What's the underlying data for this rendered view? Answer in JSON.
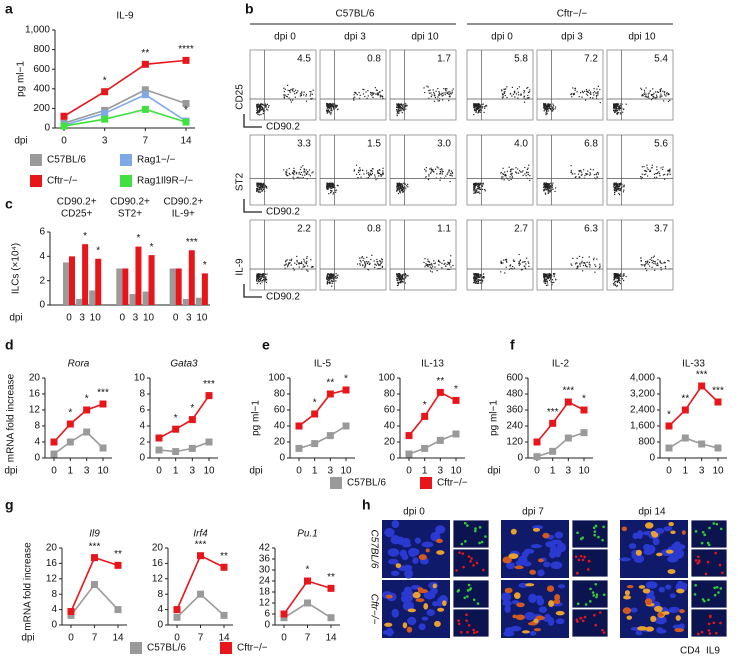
{
  "chart_data": [
    {
      "type": "line",
      "panel": "a",
      "title": "IL-9",
      "ylabel": "pg ml−1",
      "xlabel": "dpi",
      "categories": [
        "0",
        "3",
        "7",
        "14"
      ],
      "ylim": [
        0,
        1000
      ],
      "yticks": [
        0,
        200,
        400,
        600,
        800,
        {
          "value": 1000,
          "label": "1,000"
        }
      ],
      "series": [
        {
          "color": "#9a9a9a",
          "values": [
            50,
            180,
            390,
            250
          ],
          "stars": [
            null,
            null,
            null,
            null
          ]
        },
        {
          "color": "#e8161b",
          "values": [
            120,
            370,
            650,
            690
          ],
          "stars": [
            null,
            "*",
            "**",
            "****"
          ]
        },
        {
          "color": "#7fa9e6",
          "values": [
            30,
            150,
            340,
            70
          ],
          "stars": [
            null,
            null,
            null,
            "*"
          ]
        },
        {
          "color": "#3fe03f",
          "values": [
            20,
            90,
            190,
            60
          ],
          "stars": [
            null,
            null,
            null,
            null
          ]
        }
      ]
    },
    {
      "type": "legend",
      "entries": [
        {
          "name": "C57BL/6",
          "color": "#9a9a9a"
        },
        {
          "name": "Rag1−/−",
          "color": "#7fa9e6"
        },
        {
          "name": "Cftr−/−",
          "color": "#e8161b"
        },
        {
          "name": "Rag1Il9R−/−",
          "color": "#3fe03f"
        }
      ]
    },
    {
      "type": "flow",
      "panel": "b",
      "groups": [
        "C57BL/6",
        "Cftr−/−"
      ],
      "columns": [
        "dpi 0",
        "dpi 3",
        "dpi 10",
        "dpi 0",
        "dpi 3",
        "dpi 10"
      ],
      "xmarker": "CD90.2",
      "rows": [
        {
          "marker": "CD25",
          "values": [
            4.5,
            0.8,
            1.7,
            5.8,
            7.2,
            5.4
          ],
          "value_labels": [
            "4.5",
            "0.8",
            "1.7",
            "5.8",
            "7.2",
            "5.4"
          ]
        },
        {
          "marker": "ST2",
          "values": [
            3.3,
            1.5,
            3,
            4,
            6.8,
            5.6
          ],
          "value_labels": [
            "3.3",
            "1.5",
            "3.0",
            "4.0",
            "6.8",
            "5.6"
          ]
        },
        {
          "marker": "IL-9",
          "values": [
            2.2,
            0.8,
            1.1,
            2.7,
            6.3,
            3.7
          ],
          "value_labels": [
            "2.2",
            "0.8",
            "1.1",
            "2.7",
            "6.3",
            "3.7"
          ]
        }
      ]
    },
    {
      "type": "bar",
      "panel": "c",
      "ylabel": "ILCs (×10⁴)",
      "xlabel": "dpi",
      "groups": [
        [
          "CD90.2+",
          "CD25+"
        ],
        [
          "CD90.2+",
          "ST2+"
        ],
        [
          "CD90.2+",
          "IL-9+"
        ]
      ],
      "categories": [
        "0",
        "3",
        "10",
        "0",
        "3",
        "10",
        "0",
        "3",
        "10"
      ],
      "ylim": [
        0,
        6
      ],
      "yticks": [
        0,
        2,
        4,
        6
      ],
      "series": [
        {
          "color": "#9a9a9a",
          "values": [
            3.5,
            0.5,
            1.2,
            3.0,
            0.9,
            1.1,
            3.0,
            0.5,
            0.6
          ],
          "stars": [
            null,
            null,
            null,
            null,
            null,
            null,
            null,
            null,
            null
          ]
        },
        {
          "color": "#e8161b",
          "values": [
            4.0,
            5.0,
            3.8,
            3.0,
            4.8,
            4.1,
            3.0,
            4.5,
            2.6
          ],
          "stars": [
            null,
            "*",
            "*",
            null,
            "*",
            "*",
            null,
            "***",
            "*"
          ]
        }
      ]
    },
    {
      "type": "line",
      "panel": "d",
      "title": "Rora",
      "italic": true,
      "ylabel": "mRNA fold increase",
      "xlabel": "dpi",
      "categories": [
        "0",
        "1",
        "3",
        "10"
      ],
      "ylim": [
        0,
        20
      ],
      "yticks": [
        0,
        4,
        8,
        12,
        16,
        20
      ],
      "series": [
        {
          "color": "#9a9a9a",
          "values": [
            1,
            4,
            6.5,
            2.5
          ],
          "stars": [
            null,
            null,
            null,
            null
          ]
        },
        {
          "color": "#e8161b",
          "values": [
            4,
            8.5,
            12,
            13.5
          ],
          "stars": [
            null,
            "*",
            "*",
            "***"
          ]
        }
      ]
    },
    {
      "type": "line",
      "title": "Gata3",
      "italic": true,
      "categories": [
        "0",
        "1",
        "3",
        "10"
      ],
      "ylim": [
        0,
        10
      ],
      "yticks": [
        0,
        2,
        4,
        6,
        8,
        10
      ],
      "series": [
        {
          "color": "#9a9a9a",
          "values": [
            1,
            0.8,
            1.2,
            2
          ],
          "stars": [
            null,
            null,
            null,
            null
          ]
        },
        {
          "color": "#e8161b",
          "values": [
            2.5,
            3.6,
            4.8,
            7.8
          ],
          "stars": [
            null,
            "*",
            "*",
            "***"
          ]
        }
      ]
    },
    {
      "type": "line",
      "panel": "e",
      "title": "IL-5",
      "ylabel": "pg ml−1",
      "xlabel": "dpi",
      "categories": [
        "0",
        "1",
        "3",
        "10"
      ],
      "ylim": [
        0,
        100
      ],
      "yticks": [
        0,
        20,
        40,
        60,
        80,
        100
      ],
      "series": [
        {
          "color": "#9a9a9a",
          "values": [
            12,
            18,
            28,
            40
          ],
          "stars": [
            null,
            null,
            null,
            null
          ]
        },
        {
          "color": "#e8161b",
          "values": [
            40,
            55,
            80,
            85
          ],
          "stars": [
            null,
            "*",
            "**",
            "*"
          ]
        }
      ]
    },
    {
      "type": "line",
      "title": "IL-13",
      "categories": [
        "0",
        "1",
        "3",
        "10"
      ],
      "ylim": [
        0,
        100
      ],
      "yticks": [
        0,
        20,
        40,
        60,
        80,
        100
      ],
      "series": [
        {
          "color": "#9a9a9a",
          "values": [
            5,
            12,
            22,
            30
          ],
          "stars": [
            null,
            null,
            null,
            null
          ]
        },
        {
          "color": "#e8161b",
          "values": [
            28,
            52,
            82,
            72
          ],
          "stars": [
            null,
            "*",
            "**",
            "*"
          ]
        }
      ]
    },
    {
      "type": "line",
      "panel": "f",
      "title": "IL-2",
      "ylabel": "pg ml−1",
      "xlabel": "dpi",
      "categories": [
        "0",
        "1",
        "3",
        "10"
      ],
      "ylim": [
        0,
        600
      ],
      "yticks": [
        0,
        120,
        240,
        360,
        480,
        600
      ],
      "series": [
        {
          "color": "#9a9a9a",
          "values": [
            10,
            50,
            150,
            190
          ],
          "stars": [
            null,
            null,
            null,
            null
          ]
        },
        {
          "color": "#e8161b",
          "values": [
            120,
            260,
            420,
            360
          ],
          "stars": [
            null,
            "***",
            "***",
            "*"
          ]
        }
      ]
    },
    {
      "type": "line",
      "title": "IL-33",
      "categories": [
        "0",
        "1",
        "3",
        "10"
      ],
      "ylim": [
        0,
        4000
      ],
      "yticks": [
        0,
        800,
        {
          "value": 1600,
          "label": "1,600"
        },
        {
          "value": 2400,
          "label": "2,400"
        },
        {
          "value": 3200,
          "label": "3,200"
        },
        {
          "value": 4000,
          "label": "4,000"
        }
      ],
      "series": [
        {
          "color": "#9a9a9a",
          "values": [
            500,
            1000,
            700,
            500
          ],
          "stars": [
            null,
            null,
            null,
            null
          ]
        },
        {
          "color": "#e8161b",
          "values": [
            1600,
            2400,
            3600,
            2800
          ],
          "stars": [
            "*",
            "**",
            "***",
            "***"
          ]
        }
      ]
    },
    {
      "type": "legend",
      "entries": [
        {
          "name": "C57BL/6",
          "color": "#9a9a9a"
        },
        {
          "name": "Cftr−/−",
          "color": "#e8161b"
        }
      ]
    },
    {
      "type": "line",
      "panel": "g",
      "title": "Il9",
      "italic": true,
      "ylabel": "mRNA fold increase",
      "xlabel": "dpi",
      "categories": [
        "0",
        "7",
        "14"
      ],
      "ylim": [
        0,
        20
      ],
      "yticks": [
        0,
        4,
        8,
        12,
        16,
        20
      ],
      "series": [
        {
          "color": "#9a9a9a",
          "values": [
            2.5,
            10.5,
            4
          ],
          "stars": [
            null,
            null,
            null
          ]
        },
        {
          "color": "#e8161b",
          "values": [
            3.5,
            17.5,
            15.5
          ],
          "stars": [
            null,
            "***",
            "**"
          ]
        }
      ]
    },
    {
      "type": "line",
      "title": "Irf4",
      "italic": true,
      "categories": [
        "0",
        "7",
        "14"
      ],
      "ylim": [
        0,
        20
      ],
      "yticks": [
        0,
        4,
        8,
        12,
        16,
        20
      ],
      "series": [
        {
          "color": "#9a9a9a",
          "values": [
            2,
            8,
            2.5
          ],
          "stars": [
            null,
            null,
            null
          ]
        },
        {
          "color": "#e8161b",
          "values": [
            4,
            18,
            15
          ],
          "stars": [
            null,
            "***",
            "**"
          ]
        }
      ]
    },
    {
      "type": "line",
      "title": "Pu.1",
      "italic": true,
      "categories": [
        "0",
        "7",
        "14"
      ],
      "ylim": [
        0,
        42
      ],
      "yticks": [
        0,
        6,
        12,
        18,
        24,
        30,
        36,
        42
      ],
      "series": [
        {
          "color": "#9a9a9a",
          "values": [
            4,
            12,
            4
          ],
          "stars": [
            null,
            null,
            null
          ]
        },
        {
          "color": "#e8161b",
          "values": [
            6,
            24,
            20
          ],
          "stars": [
            null,
            "*",
            "**"
          ]
        }
      ]
    },
    {
      "type": "legend",
      "entries": [
        {
          "name": "C57BL/6",
          "color": "#9a9a9a"
        },
        {
          "name": "Cftr−/−",
          "color": "#e8161b"
        }
      ]
    },
    {
      "type": "image",
      "panel": "h",
      "columns": [
        "dpi 0",
        "dpi 7",
        "dpi 14"
      ],
      "rows": [
        "C57BL/6",
        "Cftr−/−"
      ],
      "stains": [
        {
          "name": "CD4",
          "color": "#33cc33"
        },
        {
          "name": "IL9",
          "color": "#e8161b"
        }
      ]
    }
  ]
}
